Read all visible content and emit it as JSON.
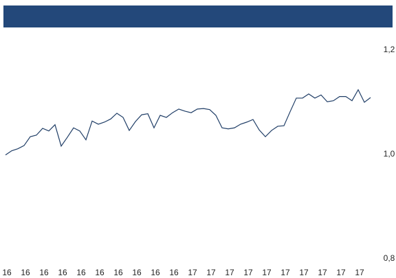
{
  "chart_data": {
    "type": "line",
    "categories": [
      "16",
      null,
      null,
      "16",
      null,
      null,
      "16",
      null,
      null,
      "16",
      null,
      null,
      "16",
      null,
      null,
      "16",
      null,
      null,
      "16",
      null,
      null,
      "16",
      null,
      null,
      "16",
      null,
      null,
      "16",
      null,
      null,
      "17",
      null,
      null,
      "17",
      null,
      null,
      "17",
      null,
      null,
      "17",
      null,
      null,
      "17",
      null,
      null,
      "17",
      null,
      null,
      "17",
      null,
      null,
      "17",
      null,
      null,
      "17",
      null,
      null,
      "17",
      null,
      null
    ],
    "series": [
      {
        "color": "#1f3d66",
        "values": [
          0.999,
          1.007,
          1.011,
          1.017,
          1.034,
          1.037,
          1.05,
          1.045,
          1.057,
          1.016,
          1.033,
          1.051,
          1.045,
          1.028,
          1.064,
          1.058,
          1.062,
          1.068,
          1.079,
          1.071,
          1.046,
          1.063,
          1.076,
          1.078,
          1.051,
          1.075,
          1.071,
          1.08,
          1.087,
          1.083,
          1.08,
          1.087,
          1.088,
          1.086,
          1.075,
          1.051,
          1.049,
          1.051,
          1.058,
          1.062,
          1.067,
          1.047,
          1.034,
          1.046,
          1.054,
          1.055,
          1.082,
          1.108,
          1.108,
          1.116,
          1.108,
          1.114,
          1.101,
          1.103,
          1.111,
          1.111,
          1.103,
          1.124,
          1.1,
          1.109
        ]
      }
    ],
    "ylim": [
      0.8,
      1.2
    ],
    "yticks": [
      {
        "value": 0.8,
        "label": "0,8"
      },
      {
        "value": 1.0,
        "label": "1,0"
      },
      {
        "value": 1.2,
        "label": "1,2"
      }
    ]
  }
}
